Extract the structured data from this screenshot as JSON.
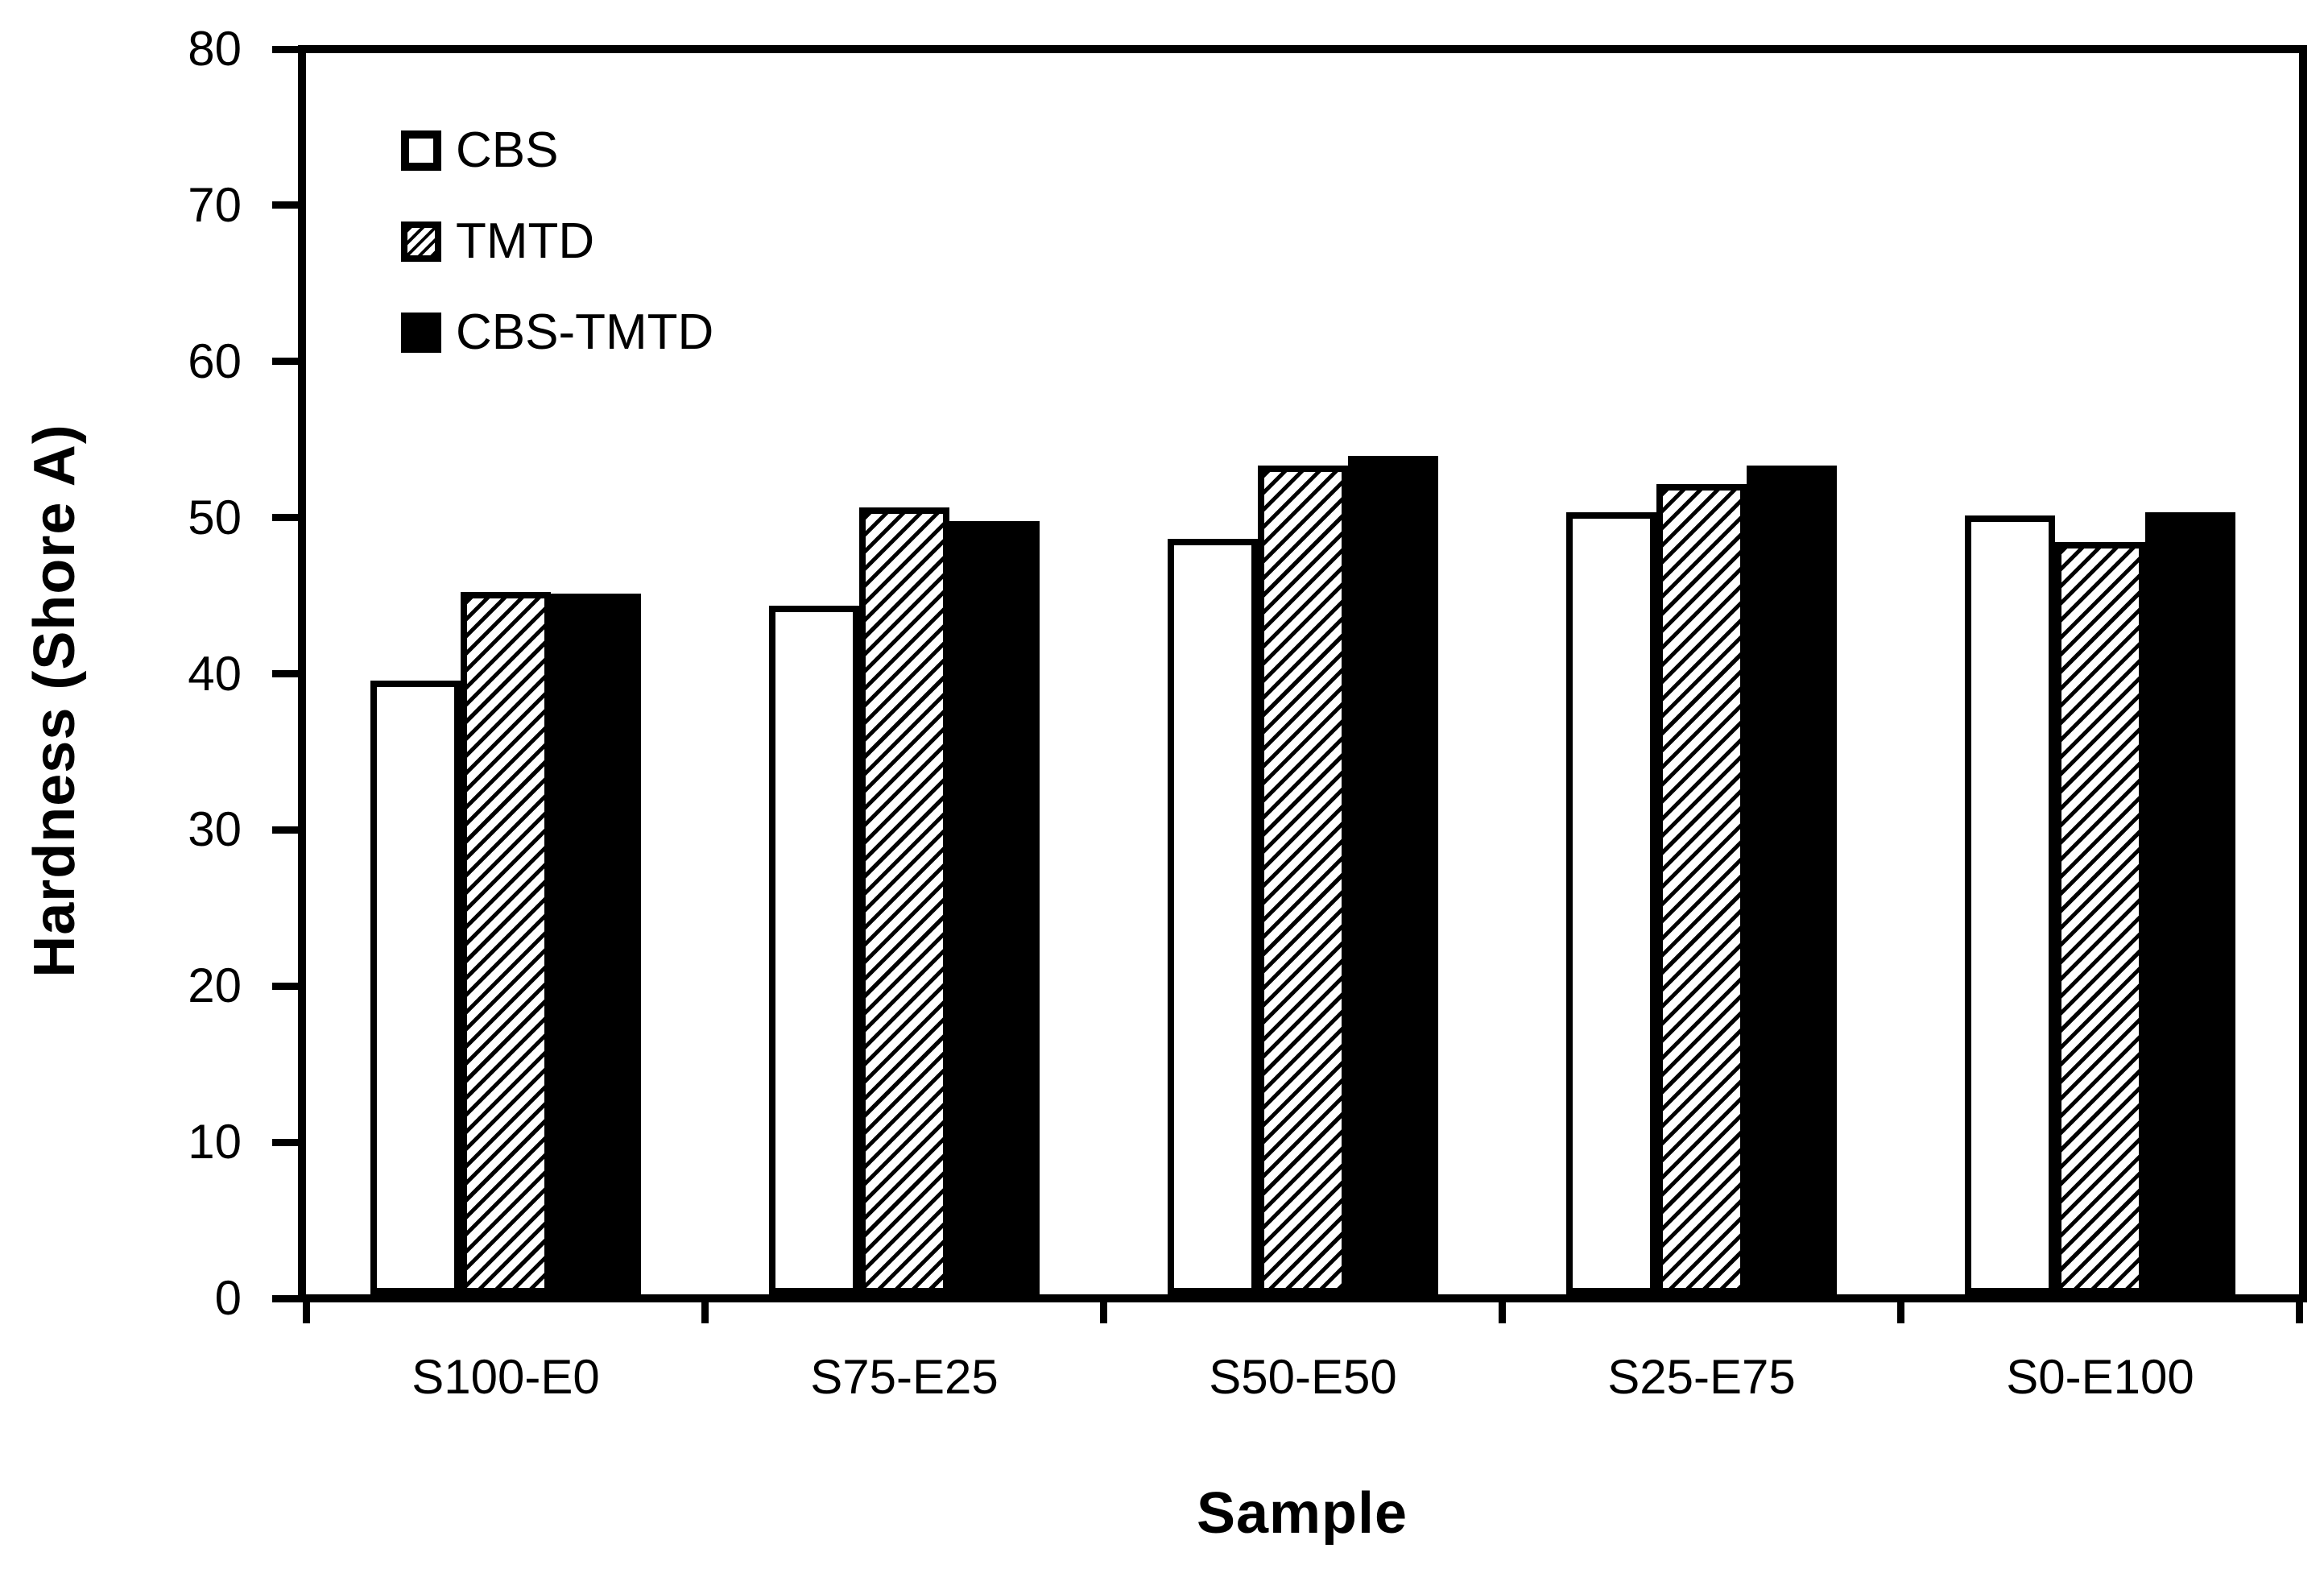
{
  "chart_data": {
    "type": "bar",
    "title": "",
    "xlabel": "Sample",
    "ylabel": "Hardness (Shore A)",
    "ylim": [
      0,
      80
    ],
    "y_ticks": [
      0,
      10,
      20,
      30,
      40,
      50,
      60,
      70,
      80
    ],
    "grid": false,
    "legend_position": "top-left-inside",
    "categories": [
      "S100-E0",
      "S75-E25",
      "S50-E50",
      "S25-E75",
      "S0-E100"
    ],
    "series": [
      {
        "name": "CBS",
        "fill": "white",
        "values": [
          39.3,
          44.1,
          48.4,
          50.1,
          49.9
        ]
      },
      {
        "name": "TMTD",
        "fill": "hatch",
        "values": [
          45.0,
          50.4,
          53.1,
          51.9,
          48.2
        ]
      },
      {
        "name": "CBS-TMTD",
        "fill": "black",
        "values": [
          44.9,
          49.5,
          53.7,
          53.1,
          50.1
        ]
      }
    ],
    "colors": {
      "axis": "#000000",
      "text": "#000000",
      "bar_border": "#000000",
      "bar_white": "#ffffff",
      "bar_black": "#000000"
    }
  }
}
